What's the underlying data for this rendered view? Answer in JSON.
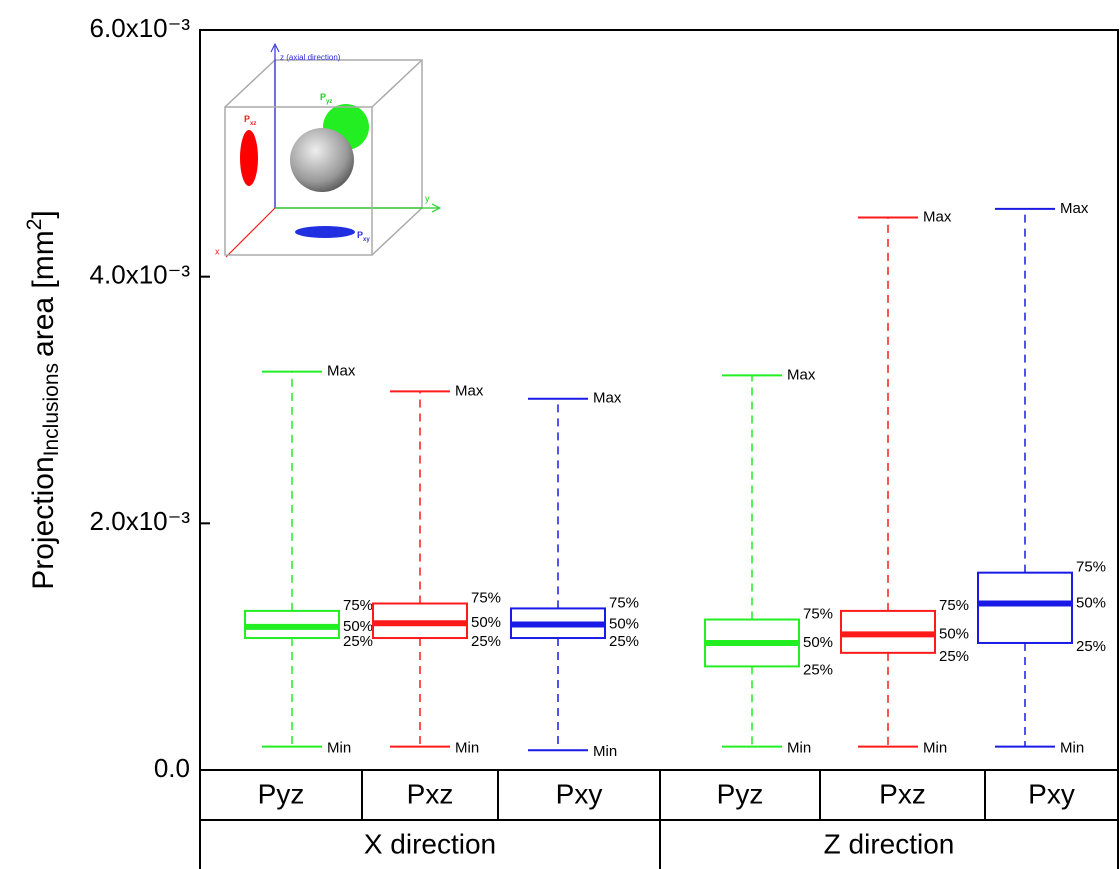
{
  "chart_data": {
    "type": "box",
    "y_label": {
      "main": "Projection",
      "sub": "Inclusions",
      "rest": "area [mm",
      "sup": "2",
      "end": "]"
    },
    "ylim": [
      0,
      0.006
    ],
    "yticks": [
      {
        "value": 0,
        "label": "0.0"
      },
      {
        "value": 0.002,
        "label": "2.0x10⁻³"
      },
      {
        "value": 0.004,
        "label": "4.0x10⁻³"
      },
      {
        "value": 0.006,
        "label": "6.0x10⁻³"
      }
    ],
    "stat_labels": {
      "max": "Max",
      "q3": "75%",
      "median": "50%",
      "q1": "25%",
      "min": "Min"
    },
    "groups": [
      {
        "name": "X direction",
        "boxes": [
          {
            "category": "Pyz",
            "color": "#22ee22",
            "min": 0.00019,
            "q1": 0.00107,
            "median": 0.00116,
            "q3": 0.00129,
            "max": 0.00323
          },
          {
            "category": "Pxz",
            "color": "#ff1a1a",
            "min": 0.00019,
            "q1": 0.00107,
            "median": 0.00119,
            "q3": 0.00135,
            "max": 0.00307
          },
          {
            "category": "Pxy",
            "color": "#1a1ae6",
            "min": 0.00016,
            "q1": 0.00107,
            "median": 0.00118,
            "q3": 0.00131,
            "max": 0.00301
          }
        ]
      },
      {
        "name": "Z direction",
        "boxes": [
          {
            "category": "Pyz",
            "color": "#22ee22",
            "min": 0.00019,
            "q1": 0.00084,
            "median": 0.00103,
            "q3": 0.00122,
            "max": 0.0032
          },
          {
            "category": "Pxz",
            "color": "#ff1a1a",
            "min": 0.00019,
            "q1": 0.00095,
            "median": 0.0011,
            "q3": 0.00129,
            "max": 0.00448
          },
          {
            "category": "Pxy",
            "color": "#1a1ae6",
            "min": 0.00019,
            "q1": 0.00103,
            "median": 0.00135,
            "q3": 0.0016,
            "max": 0.00455
          }
        ]
      }
    ],
    "inset": {
      "z_axis": "z (axial direction)",
      "y_axis": "y",
      "x_axis": "x",
      "p": "P",
      "subs": [
        "xz",
        "yz",
        "xy"
      ]
    }
  }
}
